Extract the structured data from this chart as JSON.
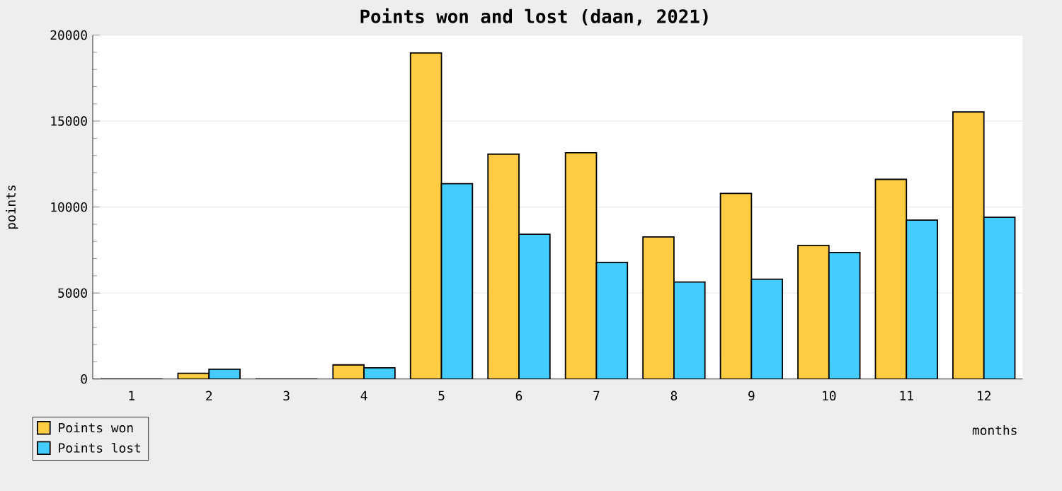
{
  "chart_data": {
    "type": "bar",
    "title": "Points won and lost (daan, 2021)",
    "xlabel": "months",
    "ylabel": "points",
    "categories": [
      "1",
      "2",
      "3",
      "4",
      "5",
      "6",
      "7",
      "8",
      "9",
      "10",
      "11",
      "12"
    ],
    "series": [
      {
        "name": "Points won",
        "color": "#ffcc44",
        "values": [
          0,
          330,
          0,
          820,
          18960,
          13080,
          13160,
          8260,
          10790,
          7770,
          11610,
          15530
        ]
      },
      {
        "name": "Points lost",
        "color": "#44ccff",
        "values": [
          0,
          570,
          0,
          650,
          11360,
          8420,
          6780,
          5640,
          5800,
          7360,
          9240,
          9400
        ]
      }
    ],
    "ylim": [
      0,
      20000
    ],
    "yticks": [
      0,
      5000,
      10000,
      15000,
      20000
    ],
    "grid": "y",
    "legend": "bottom left"
  }
}
